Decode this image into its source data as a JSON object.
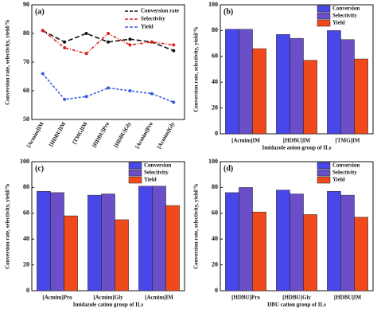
{
  "chart_data": [
    {
      "type": "line",
      "label": "(a)",
      "ylabel": "Conversion rate, selectivity, yield/%",
      "categories": [
        "[Acmim]IM",
        "[HDBU]IM",
        "[TMG]IM",
        "[HDBU]Pro",
        "[HDBU]Gly",
        "[Acmim]Pro",
        "[Acmim]Gly"
      ],
      "series": [
        {
          "name": "Conversion rate",
          "color": "#111111",
          "values": [
            81,
            77,
            80,
            77,
            78,
            77,
            74
          ]
        },
        {
          "name": "Selectivity",
          "color": "#e02020",
          "values": [
            81,
            75,
            73,
            80,
            76,
            77,
            76
          ]
        },
        {
          "name": "Yield",
          "color": "#3a5bd8",
          "values": [
            66,
            57,
            58,
            61,
            60,
            59,
            56
          ]
        }
      ],
      "ylim": [
        50,
        90
      ],
      "yticks": [
        50,
        60,
        70,
        80,
        90
      ]
    },
    {
      "type": "bar",
      "label": "(b)",
      "ylabel": "Conversion rate, selectivity, yield/%",
      "xlabel": "Imidazole anion group of ILs",
      "categories": [
        "[Acmim]IM",
        "[HDBU]IM",
        "[TMG]IM"
      ],
      "series": [
        {
          "name": "Conversion",
          "color": "#4848e8",
          "values": [
            81,
            77,
            80
          ]
        },
        {
          "name": "Selectivity",
          "color": "#6a4fc8",
          "values": [
            81,
            74,
            73
          ]
        },
        {
          "name": "Yield",
          "color": "#f04a1c",
          "values": [
            66,
            57,
            58
          ]
        }
      ],
      "ylim": [
        0,
        100
      ],
      "yticks": [
        0,
        20,
        40,
        60,
        80,
        100
      ]
    },
    {
      "type": "bar",
      "label": "(c)",
      "ylabel": "Conversion rate, selectivity, yield/%",
      "xlabel": "Imidazole cation group of ILs",
      "categories": [
        "[Acmim]Pro",
        "[Acmim]Gly",
        "[Acmim]IM"
      ],
      "series": [
        {
          "name": "Conversion",
          "color": "#4848e8",
          "values": [
            77,
            74,
            81
          ]
        },
        {
          "name": "Selectivity",
          "color": "#6a4fc8",
          "values": [
            76,
            75,
            81
          ]
        },
        {
          "name": "Yield",
          "color": "#f04a1c",
          "values": [
            58,
            55,
            66
          ]
        }
      ],
      "ylim": [
        0,
        100
      ],
      "yticks": [
        0,
        20,
        40,
        60,
        80,
        100
      ]
    },
    {
      "type": "bar",
      "label": "(d)",
      "ylabel": "Conversion rate, selectivity, yield/%",
      "xlabel": "DBU cation group of ILs",
      "categories": [
        "[HDBU]Pro",
        "[HDBU]Gly",
        "[HDBU]IM"
      ],
      "series": [
        {
          "name": "Conversion",
          "color": "#4848e8",
          "values": [
            76,
            78,
            77
          ]
        },
        {
          "name": "Selectivity",
          "color": "#6a4fc8",
          "values": [
            80,
            75,
            74
          ]
        },
        {
          "name": "Yield",
          "color": "#f04a1c",
          "values": [
            61,
            59,
            57
          ]
        }
      ],
      "ylim": [
        0,
        100
      ],
      "yticks": [
        0,
        20,
        40,
        60,
        80,
        100
      ]
    }
  ]
}
